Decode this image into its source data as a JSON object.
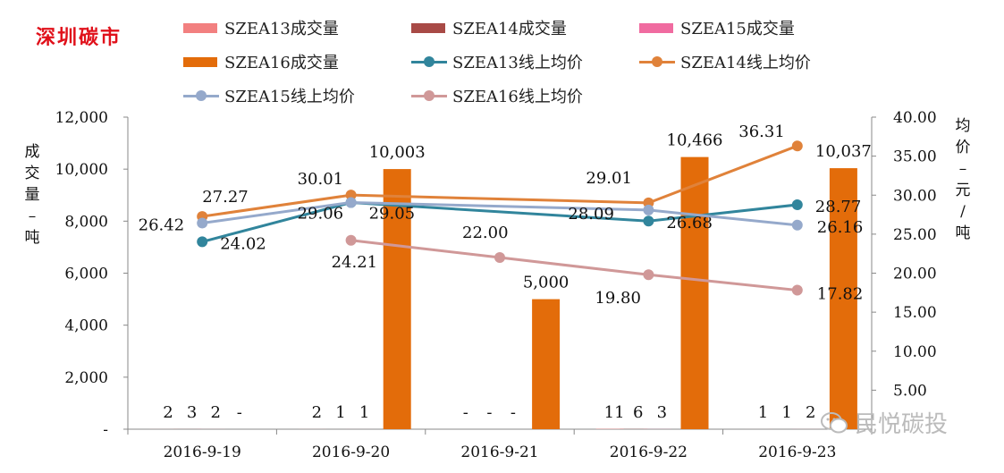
{
  "brand": "深圳碳市",
  "watermark": "民悦碳投",
  "colors": {
    "SZEA13_vol": "#f28080",
    "SZEA14_vol": "#a84a46",
    "SZEA15_vol": "#f06ba0",
    "SZEA16_vol": "#e36c0a",
    "SZEA13_price": "#31859c",
    "SZEA14_price": "#e0823a",
    "SZEA15_price": "#95a9cb",
    "SZEA16_price": "#d09898"
  },
  "legend": [
    {
      "label": "SZEA13成交量",
      "kind": "bar",
      "color": "#f28080"
    },
    {
      "label": "SZEA14成交量",
      "kind": "bar",
      "color": "#a84a46"
    },
    {
      "label": "SZEA15成交量",
      "kind": "bar",
      "color": "#f06ba0"
    },
    {
      "label": "SZEA16成交量",
      "kind": "bar",
      "color": "#e36c0a"
    },
    {
      "label": "SZEA13线上均价",
      "kind": "line",
      "color": "#31859c"
    },
    {
      "label": "SZEA14线上均价",
      "kind": "line",
      "color": "#e0823a"
    },
    {
      "label": "SZEA15线上均价",
      "kind": "line",
      "color": "#95a9cb"
    },
    {
      "label": "SZEA16线上均价",
      "kind": "line",
      "color": "#d09898"
    }
  ],
  "chart_data": {
    "type": "bar",
    "categories": [
      "2016-9-19",
      "2016-9-20",
      "2016-9-21",
      "2016-9-22",
      "2016-9-23"
    ],
    "ylabel": "成交量-吨",
    "y2label": "均价-元/吨",
    "ylim": [
      0,
      12000
    ],
    "y2lim": [
      0,
      40
    ],
    "yticks": [
      "-",
      "2,000",
      "4,000",
      "6,000",
      "8,000",
      "10,000",
      "12,000"
    ],
    "y2ticks": [
      "5.00",
      "10.00",
      "15.00",
      "20.00",
      "25.00",
      "30.00",
      "35.00",
      "40.00"
    ],
    "bar_series": [
      {
        "name": "SZEA13成交量",
        "values": [
          2,
          2,
          0,
          11,
          1
        ],
        "labels": [
          "2",
          "2",
          "-",
          "11",
          "1"
        ]
      },
      {
        "name": "SZEA14成交量",
        "values": [
          3,
          1,
          0,
          6,
          1
        ],
        "labels": [
          "3",
          "1",
          "-",
          "6",
          "1"
        ]
      },
      {
        "name": "SZEA15成交量",
        "values": [
          2,
          1,
          0,
          3,
          2
        ],
        "labels": [
          "2",
          "1",
          "-",
          "3",
          "2"
        ]
      },
      {
        "name": "SZEA16成交量",
        "values": [
          0,
          10003,
          5000,
          10466,
          10037
        ],
        "labels": [
          "-",
          "10,003",
          "5,000",
          "10,466",
          "10,037"
        ]
      }
    ],
    "line_series": [
      {
        "name": "SZEA13线上均价",
        "values": [
          24.02,
          29.05,
          null,
          26.68,
          28.77
        ],
        "labels": [
          "24.02",
          "29.05",
          "",
          "26.68",
          "28.77"
        ]
      },
      {
        "name": "SZEA14线上均价",
        "values": [
          27.27,
          30.01,
          null,
          29.01,
          36.31
        ],
        "labels": [
          "27.27",
          "30.01",
          "",
          "29.01",
          "36.31"
        ]
      },
      {
        "name": "SZEA15线上均价",
        "values": [
          26.42,
          29.06,
          null,
          28.09,
          26.16
        ],
        "labels": [
          "26.42",
          "29.06",
          "",
          "28.09",
          "26.16"
        ]
      },
      {
        "name": "SZEA16线上均价",
        "values": [
          null,
          24.21,
          22.0,
          19.8,
          17.82
        ],
        "labels": [
          "",
          "24.21",
          "22.00",
          "19.80",
          "17.82"
        ]
      }
    ]
  }
}
